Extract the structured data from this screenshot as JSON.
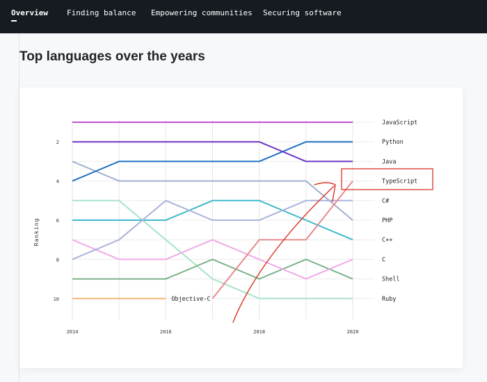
{
  "nav": {
    "items": [
      {
        "label": "Overview",
        "active": true
      },
      {
        "label": "Finding balance",
        "active": false
      },
      {
        "label": "Empowering communities",
        "active": false
      },
      {
        "label": "Securing software",
        "active": false
      }
    ]
  },
  "page": {
    "title": "Top languages over the years"
  },
  "annotation": {
    "highlight_label": "TypeScript",
    "highlight_color": "#d93025"
  },
  "chart_data": {
    "type": "line",
    "title": "Top languages over the years",
    "xlabel": "",
    "ylabel": "Ranking",
    "x": [
      2014,
      2015,
      2016,
      2017,
      2018,
      2019,
      2020
    ],
    "xticks": [
      "2014",
      "2016",
      "2018",
      "2020"
    ],
    "yticks": [
      "2",
      "4",
      "6",
      "8",
      "10"
    ],
    "ylim": [
      1,
      10
    ],
    "grid": true,
    "inline_labels": [
      {
        "text": "Objective-C",
        "series": "Objective-C"
      }
    ],
    "series": [
      {
        "name": "JavaScript",
        "color": "#c34fd1",
        "ranks": [
          1,
          1,
          1,
          1,
          1,
          1,
          1
        ]
      },
      {
        "name": "Python",
        "color": "#6a35c4",
        "ranks": [
          2,
          2,
          2,
          2,
          2,
          3,
          3
        ]
      },
      {
        "name": "Java",
        "color": "#1f6fc0",
        "ranks": [
          4,
          3,
          3,
          3,
          3,
          2,
          2
        ]
      },
      {
        "name": "TypeScript",
        "color": "#e88a8a",
        "ranks": [
          null,
          null,
          null,
          10,
          7,
          7,
          4
        ]
      },
      {
        "name": "C#",
        "color": "#9faed0",
        "ranks": [
          3,
          4,
          4,
          4,
          4,
          4,
          6
        ]
      },
      {
        "name": "PHP",
        "color": "#aab3dd",
        "ranks": [
          8,
          7,
          5,
          6,
          6,
          5,
          5
        ]
      },
      {
        "name": "C++",
        "color": "#3cb8cb",
        "ranks": [
          6,
          6,
          6,
          5,
          5,
          6,
          7
        ]
      },
      {
        "name": "C",
        "color": "#f2a8e8",
        "ranks": [
          7,
          8,
          8,
          7,
          8,
          9,
          8
        ]
      },
      {
        "name": "Shell",
        "color": "#7bb28a",
        "ranks": [
          9,
          9,
          9,
          8,
          9,
          8,
          9
        ]
      },
      {
        "name": "Ruby",
        "color": "#a8e4c8",
        "ranks": [
          5,
          5,
          7,
          9,
          10,
          10,
          10
        ]
      },
      {
        "name": "Objective-C",
        "color": "#f2b67a",
        "ranks": [
          10,
          10,
          10,
          null,
          null,
          null,
          null
        ]
      }
    ],
    "right_labels": [
      "JavaScript",
      "Python",
      "Java",
      "TypeScript",
      "C#",
      "PHP",
      "C++",
      "C",
      "Shell",
      "Ruby"
    ]
  }
}
